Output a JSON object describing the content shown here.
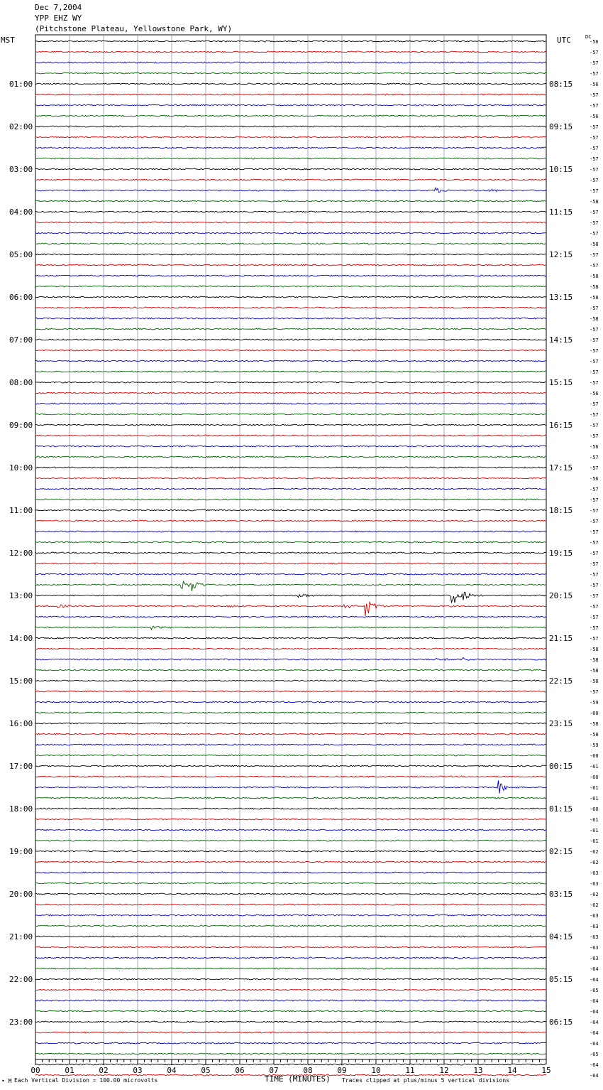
{
  "header": {
    "date": "Dec 7,2004",
    "station": "YPP EHZ WY",
    "location": "(Pitchstone Plateau, Yellowstone Park, WY)"
  },
  "left_zone": "MST",
  "right_zone": "UTC",
  "dc_label": "DC",
  "footer": {
    "vertical_division": "Each Vertical Division =  100.00 microvolts",
    "clip_note": "Traces clipped at plus/minus 5 vertical divisions",
    "mark": "• M"
  },
  "chart_data": {
    "type": "line",
    "title": "",
    "xlabel": "TIME (MINUTES)",
    "xlim": [
      0,
      15
    ],
    "x_ticks": [
      "00",
      "01",
      "02",
      "03",
      "04",
      "05",
      "06",
      "07",
      "08",
      "09",
      "10",
      "11",
      "12",
      "13",
      "14",
      "15"
    ],
    "trace_colors": [
      "#000000",
      "#dd0000",
      "#0000cc",
      "#006600"
    ],
    "left_hour_labels": [
      "01:00",
      "02:00",
      "03:00",
      "04:00",
      "05:00",
      "06:00",
      "07:00",
      "08:00",
      "09:00",
      "10:00",
      "11:00",
      "12:00",
      "13:00",
      "14:00",
      "15:00",
      "16:00",
      "17:00",
      "18:00",
      "19:00",
      "20:00",
      "21:00",
      "22:00",
      "23:00"
    ],
    "right_hour_labels": [
      "08:15",
      "09:15",
      "10:15",
      "11:15",
      "12:15",
      "13:15",
      "14:15",
      "15:15",
      "16:15",
      "17:15",
      "18:15",
      "19:15",
      "20:15",
      "21:15",
      "22:15",
      "23:15",
      "00:15",
      "01:15",
      "02:15",
      "03:15",
      "04:15",
      "05:15",
      "06:15"
    ],
    "dc_offsets": [
      -56,
      -57,
      -57,
      -57,
      -56,
      -57,
      -57,
      -56,
      -57,
      -57,
      -57,
      -57,
      -57,
      -57,
      -57,
      -58,
      -57,
      -57,
      -57,
      -58,
      -57,
      -57,
      -58,
      -58,
      -58,
      -57,
      -58,
      -57,
      -57,
      -57,
      -57,
      -57,
      -57,
      -56,
      -57,
      -57,
      -57,
      -57,
      -56,
      -57,
      -57,
      -56,
      -57,
      -57,
      -57,
      -57,
      -57,
      -57,
      -57,
      -57,
      -57,
      -57,
      -57,
      -57,
      -57,
      -57,
      -57,
      -58,
      -58,
      -58,
      -58,
      -57,
      -59,
      -60,
      -58,
      -58,
      -59,
      -60,
      -61,
      -60,
      -61,
      -61,
      -60,
      -61,
      -61,
      -61,
      -62,
      -62,
      -63,
      -63,
      -62,
      -62,
      -63,
      -63,
      -63,
      -63,
      -63,
      -64,
      -64,
      -65,
      -64,
      -64,
      -64,
      -64,
      -64,
      -65,
      -64,
      -64
    ],
    "events": [
      {
        "trace": 14,
        "minute": 11.75,
        "amplitude": 0.8
      },
      {
        "trace": 14,
        "minute": 13.35,
        "amplitude": 0.4
      },
      {
        "trace": 51,
        "minute": 4.3,
        "amplitude": 1.6
      },
      {
        "trace": 51,
        "minute": 4.6,
        "amplitude": 2.0
      },
      {
        "trace": 52,
        "minute": 7.75,
        "amplitude": 1.0
      },
      {
        "trace": 52,
        "minute": 12.25,
        "amplitude": 4.0
      },
      {
        "trace": 52,
        "minute": 12.6,
        "amplitude": 0.8
      },
      {
        "trace": 53,
        "minute": 0.7,
        "amplitude": 0.5
      },
      {
        "trace": 53,
        "minute": 5.65,
        "amplitude": 0.4
      },
      {
        "trace": 53,
        "minute": 9.1,
        "amplitude": 0.9
      },
      {
        "trace": 53,
        "minute": 9.72,
        "amplitude": 3.5
      },
      {
        "trace": 55,
        "minute": 3.4,
        "amplitude": 0.6
      },
      {
        "trace": 58,
        "minute": 11.8,
        "amplitude": 0.5
      },
      {
        "trace": 58,
        "minute": 12.55,
        "amplitude": 0.6
      },
      {
        "trace": 70,
        "minute": 13.6,
        "amplitude": 2.2
      }
    ]
  }
}
